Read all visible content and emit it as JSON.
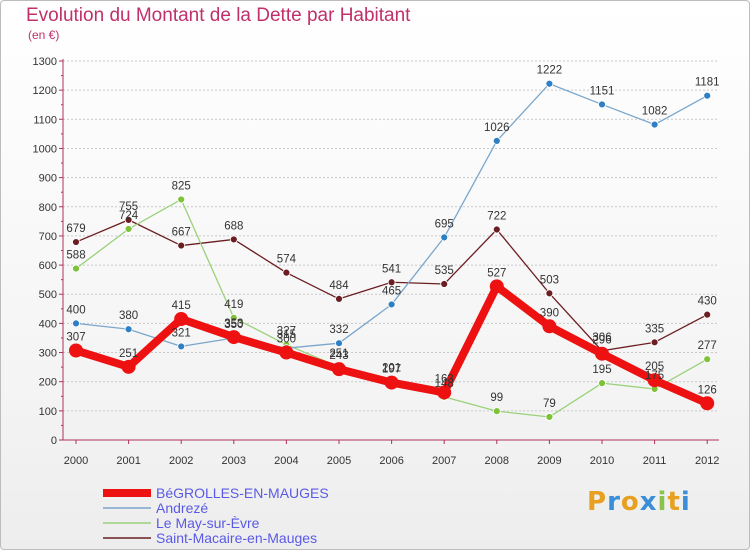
{
  "title": "Evolution du Montant de la Dette par Habitant",
  "subtitle": "(en €)",
  "logo_text": "Proxiti",
  "colors": {
    "title": "#c0306a",
    "logo": [
      "#e8a020",
      "#3a8fd8",
      "#e8a020",
      "#3a8fd8",
      "#8bc34a",
      "#e8a020",
      "#3a8fd8"
    ]
  },
  "chart_data": {
    "type": "line",
    "title": "Evolution du Montant de la Dette par Habitant",
    "ylabel": "(en €)",
    "x": [
      "2000",
      "2001",
      "2002",
      "2003",
      "2004",
      "2005",
      "2006",
      "2007",
      "2008",
      "2009",
      "2010",
      "2011",
      "2012"
    ],
    "ylim": [
      0,
      1300
    ],
    "yticks": [
      0,
      100,
      200,
      300,
      400,
      500,
      600,
      700,
      800,
      900,
      1000,
      1100,
      1200,
      1300
    ],
    "grid": true,
    "legend": "bottom-left",
    "series": [
      {
        "name": "Saint-Macaire-en-Mauges",
        "color": "#6b1e22",
        "dot": "#6b1e22",
        "width": 1.3,
        "marker": 3.5,
        "values": [
          679,
          755,
          667,
          688,
          574,
          484,
          541,
          535,
          722,
          503,
          306,
          335,
          430
        ]
      },
      {
        "name": "Le May-sur-Èvre",
        "color": "#9ad17a",
        "dot": "#7ec23a",
        "width": 1.3,
        "marker": 3.5,
        "values": [
          588,
          724,
          825,
          419,
          327,
          251,
          201,
          148,
          99,
          79,
          195,
          175,
          277
        ]
      },
      {
        "name": "Andrezé",
        "color": "#7aa6cc",
        "dot": "#2f7fc4",
        "width": 1.3,
        "marker": 3.5,
        "values": [
          400,
          380,
          321,
          350,
          315,
          332,
          465,
          695,
          1026,
          1222,
          1151,
          1082,
          1181
        ]
      },
      {
        "name": "BéGROLLES-EN-MAUGES",
        "color": "#ee1111",
        "dot": "#ee1111",
        "width": 8,
        "marker": 7,
        "values": [
          307,
          251,
          415,
          353,
          300,
          243,
          197,
          163,
          527,
          390,
          296,
          205,
          126
        ]
      }
    ],
    "legend_order": [
      "BéGROLLES-EN-MAUGES",
      "Andrezé",
      "Le May-sur-Èvre",
      "Saint-Macaire-en-Mauges"
    ]
  }
}
